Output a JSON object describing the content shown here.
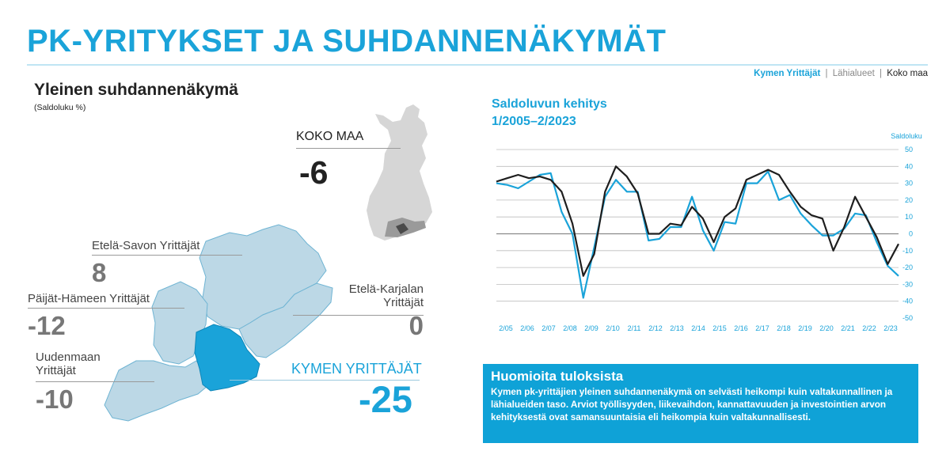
{
  "header": {
    "title": "PK-YRITYKSET JA SUHDANNENÄKYMÄT",
    "legend": {
      "kymen": "Kymen Yrittäjät",
      "sep1": "|",
      "lahialueet": "Lähialueet",
      "sep2": "|",
      "koko_maa": "Koko maa"
    }
  },
  "left": {
    "title": "Yleinen suhdannenäkymä",
    "subtitle": "(Saldoluku %)",
    "koko_maa": {
      "name": "KOKO MAA",
      "value": "-6"
    },
    "regions": {
      "etela_savo": {
        "name": "Etelä-Savon Yrittäjät",
        "value": "8"
      },
      "paijat_hame": {
        "name": "Päijät-Hämeen Yrittäjät",
        "value": "-12"
      },
      "uusimaa": {
        "name_1": "Uudenmaan",
        "name_2": "Yrittäjät",
        "value": "-10"
      },
      "etela_karjala": {
        "name_1": "Etelä-Karjalan",
        "name_2": "Yrittäjät",
        "value": "0"
      },
      "kymen": {
        "name": "KYMEN YRITTÄJÄT",
        "value": "-25"
      }
    }
  },
  "chart": {
    "title_line1": "Saldoluvun kehitys",
    "title_line2": "1/2005–2/2023"
  },
  "chart_data": {
    "type": "line",
    "ylabel": "Saldoluku",
    "ylim": [
      -50,
      50
    ],
    "yticks": [
      50,
      40,
      30,
      20,
      10,
      0,
      -10,
      -20,
      -30,
      -40,
      -50
    ],
    "xtick_labels": [
      "2/05",
      "2/06",
      "2/07",
      "2/08",
      "2/09",
      "2/10",
      "2/11",
      "2/12",
      "2/13",
      "2/14",
      "2/15",
      "2/16",
      "2/17",
      "2/18",
      "2/19",
      "2/20",
      "2/21",
      "2/22",
      "2/23"
    ],
    "grid": "horizontal",
    "colors": {
      "kymen": "#1aa3d9",
      "koko_maa": "#1e1e1e",
      "grid": "#bdbdbd",
      "axis_text": "#1aa3d9"
    },
    "series": [
      {
        "name": "Kymen Yrittäjät",
        "values": [
          30,
          29,
          27,
          31,
          35,
          36,
          13,
          0,
          -38,
          -8,
          22,
          32,
          25,
          25,
          -4,
          -3,
          4,
          4,
          22,
          2,
          -10,
          7,
          6,
          30,
          30,
          37,
          20,
          23,
          12,
          5,
          -1,
          -1,
          3,
          12,
          11,
          -5,
          -19,
          -25
        ]
      },
      {
        "name": "Koko maa",
        "values": [
          31,
          33,
          35,
          33,
          34,
          32,
          25,
          6,
          -25,
          -12,
          25,
          40,
          34,
          24,
          0,
          0,
          6,
          5,
          16,
          9,
          -5,
          10,
          15,
          32,
          35,
          38,
          35,
          25,
          16,
          11,
          9,
          -10,
          4,
          22,
          10,
          -2,
          -18,
          -6
        ]
      }
    ]
  },
  "notes": {
    "title": "Huomioita tuloksista",
    "body": "Kymen pk-yrittäjien yleinen suhdannenäkymä on selvästi heikompi kuin valtakunnallinen ja lähialueiden taso. Arviot työllisyyden, liikevaihdon, kannattavuuden ja investointien arvon kehityksestä ovat samansuuntaisia eli heikompia kuin valtakunnallisesti."
  }
}
